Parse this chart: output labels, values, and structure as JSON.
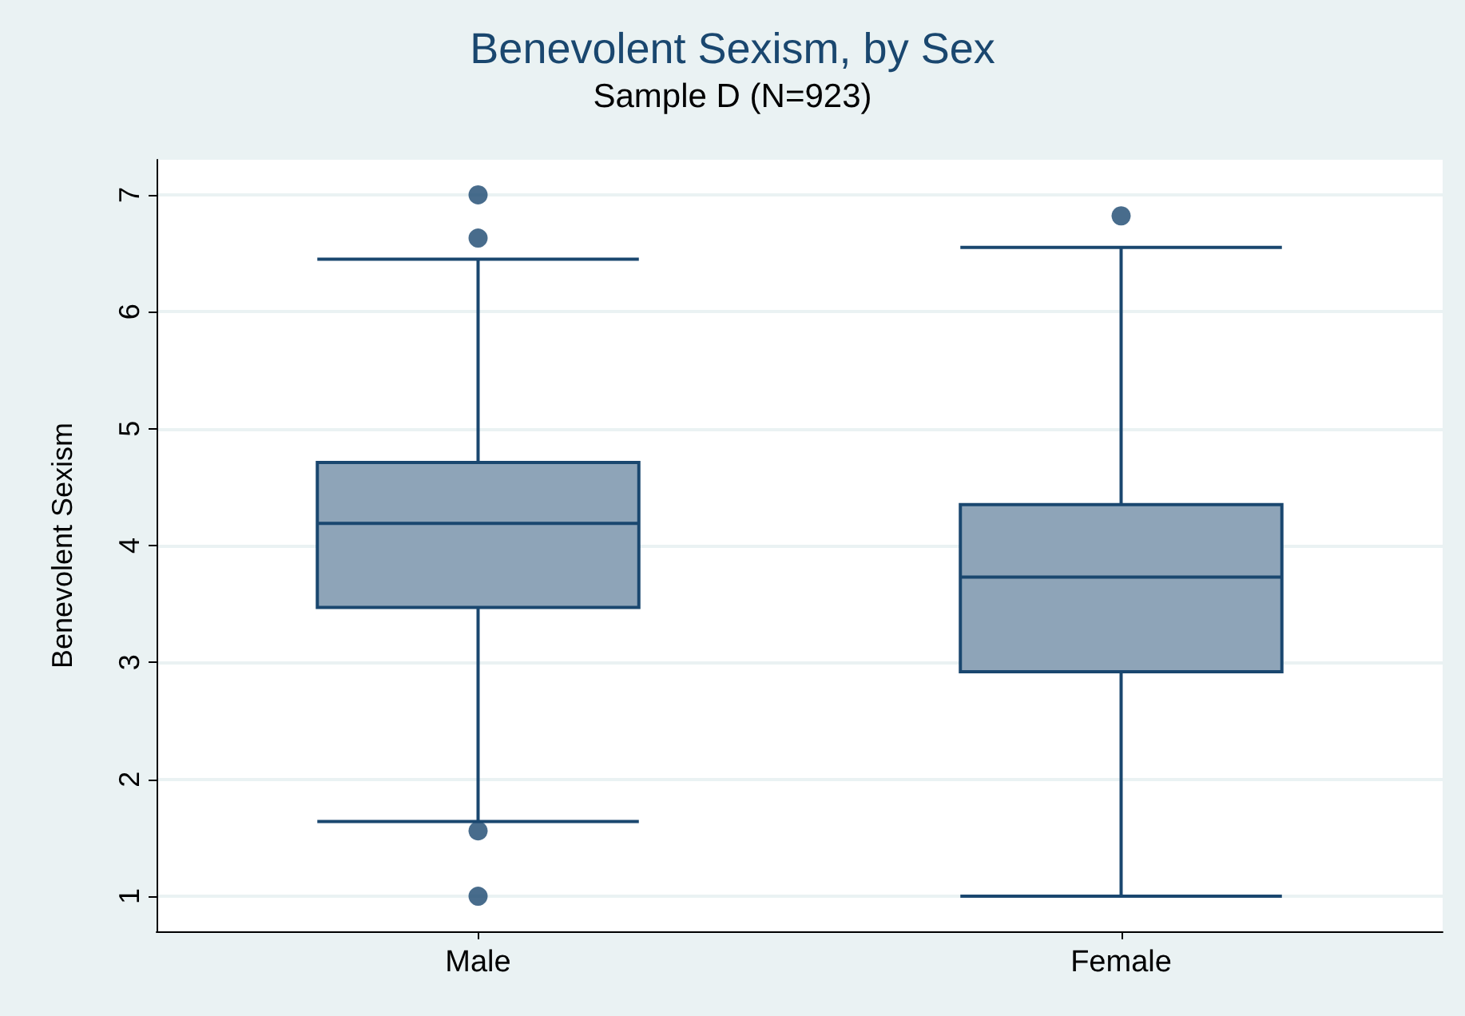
{
  "chart_data": {
    "type": "box",
    "title": "Benevolent Sexism, by Sex",
    "subtitle": "Sample D (N=923)",
    "ylabel": "Benevolent Sexism",
    "categories": [
      "Male",
      "Female"
    ],
    "series": [
      {
        "color": "#8ea4b8",
        "boxes": [
          {
            "low": 1.64,
            "q1": 3.47,
            "median": 4.19,
            "q3": 4.71,
            "high": 6.45,
            "outliers": [
              7,
              6.63,
              1.56,
              1
            ]
          },
          {
            "low": 1,
            "q1": 2.92,
            "median": 3.73,
            "q3": 4.35,
            "high": 6.55,
            "outliers": [
              6.82
            ]
          }
        ]
      }
    ],
    "ylim": [
      0.7,
      7.3
    ],
    "yticks": [
      1,
      2,
      3,
      4,
      5,
      6,
      7
    ],
    "grid": "y"
  }
}
